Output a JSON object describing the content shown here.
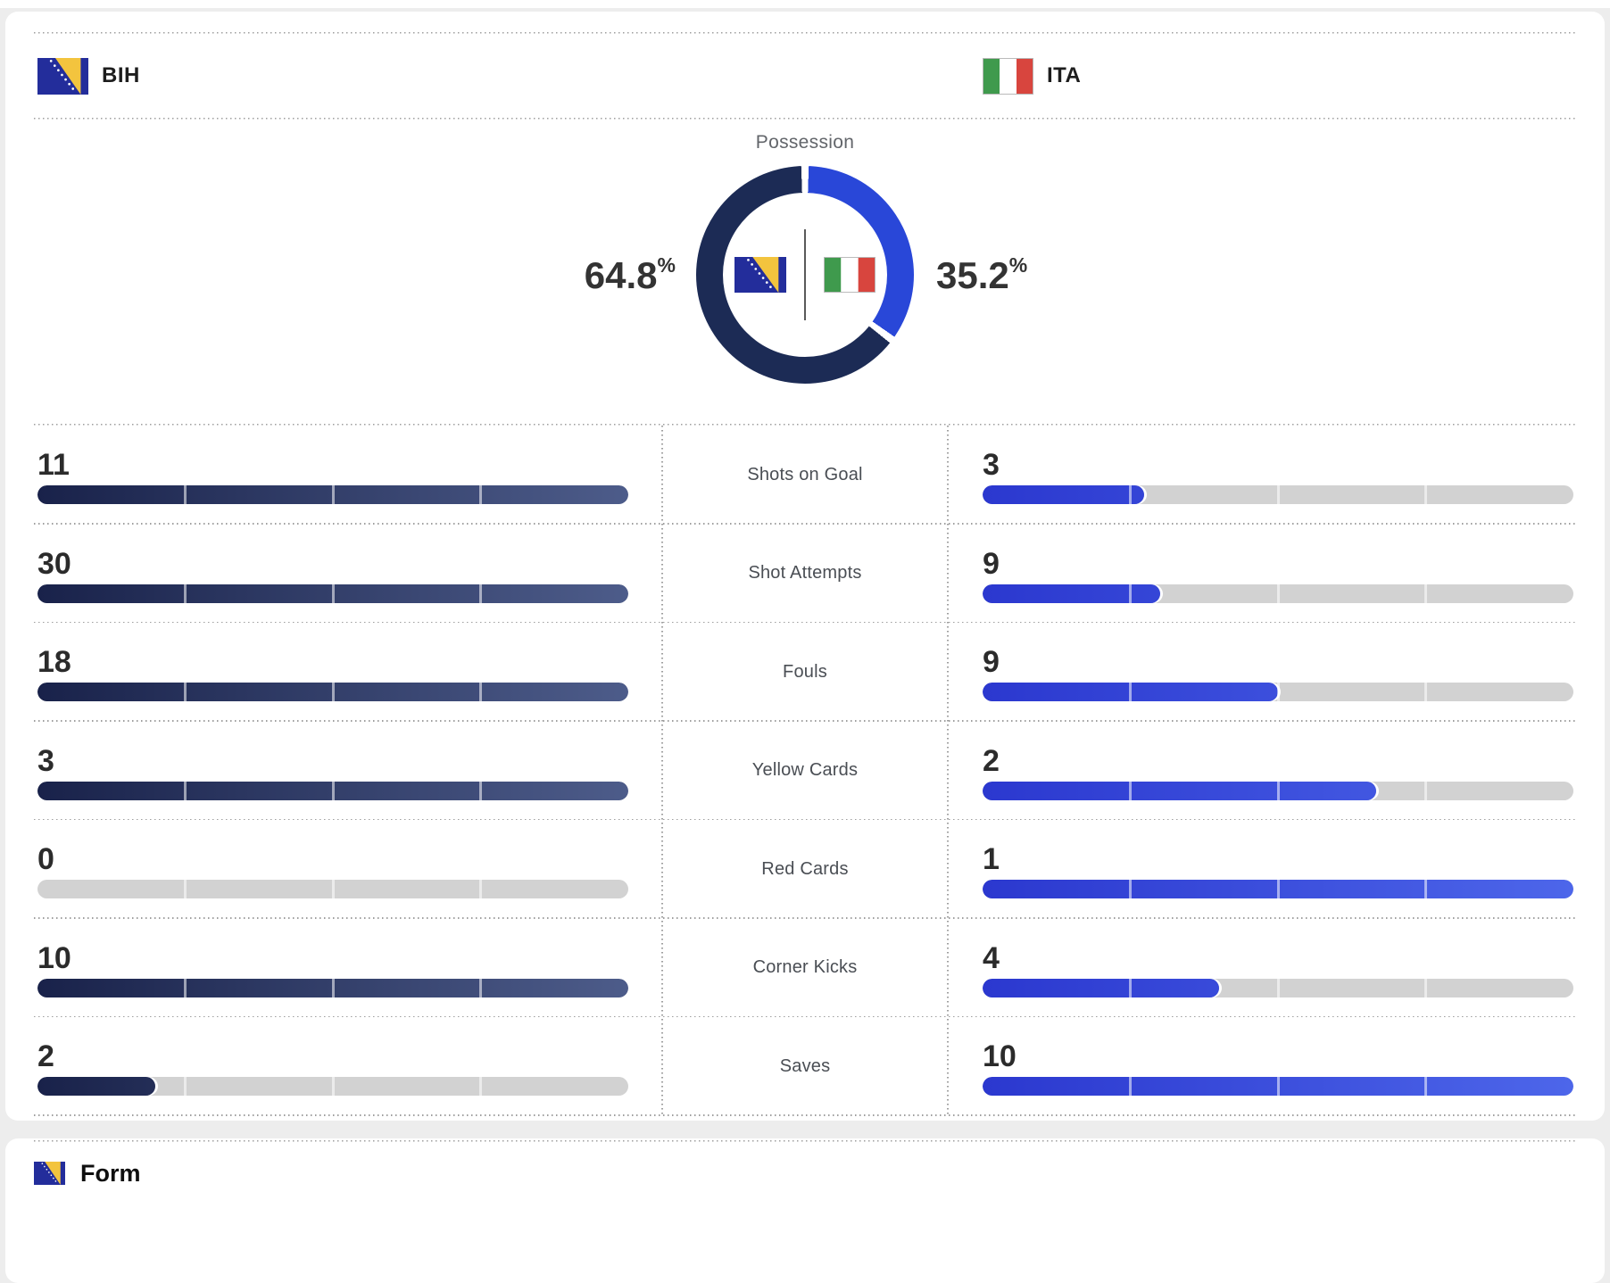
{
  "teams": {
    "home": {
      "code": "BIH",
      "flag_icon": "bih-flag-icon"
    },
    "away": {
      "code": "ITA",
      "flag_icon": "ita-flag-icon"
    }
  },
  "possession": {
    "title": "Possession",
    "home_value": "64.8",
    "away_value": "35.2",
    "percent_symbol": "%",
    "home_pct": 64.8,
    "away_pct": 35.2
  },
  "stats": {
    "rows": [
      {
        "label": "Shots on Goal",
        "home": "11",
        "away": "3"
      },
      {
        "label": "Shot Attempts",
        "home": "30",
        "away": "9"
      },
      {
        "label": "Fouls",
        "home": "18",
        "away": "9"
      },
      {
        "label": "Yellow Cards",
        "home": "3",
        "away": "2"
      },
      {
        "label": "Red Cards",
        "home": "0",
        "away": "1"
      },
      {
        "label": "Corner Kicks",
        "home": "10",
        "away": "4"
      },
      {
        "label": "Saves",
        "home": "2",
        "away": "10"
      }
    ]
  },
  "form_section": {
    "title": "Form",
    "flag_icon": "bih-flag-icon"
  },
  "colors": {
    "home_donut": "#1c2b55",
    "away_donut": "#2947d8",
    "home_bar_start": "#19224a",
    "home_bar_end": "#4d5c8a",
    "away_bar_start": "#2b38cf",
    "away_bar_end": "#4d66ea",
    "bar_track": "#d2d2d2"
  },
  "chart_data": [
    {
      "type": "pie",
      "title": "Possession",
      "labels": [
        "BIH",
        "ITA"
      ],
      "values": [
        64.8,
        35.2
      ],
      "unit": "%"
    },
    {
      "type": "bar",
      "title": "Match statistics comparison",
      "categories": [
        "Shots on Goal",
        "Shot Attempts",
        "Fouls",
        "Yellow Cards",
        "Red Cards",
        "Corner Kicks",
        "Saves"
      ],
      "series": [
        {
          "name": "BIH",
          "values": [
            11,
            30,
            18,
            3,
            0,
            10,
            2
          ]
        },
        {
          "name": "ITA",
          "values": [
            3,
            9,
            9,
            2,
            1,
            4,
            10
          ]
        }
      ],
      "layout": "horizontal paired bars, each bar scaled to the max of its pair"
    }
  ]
}
